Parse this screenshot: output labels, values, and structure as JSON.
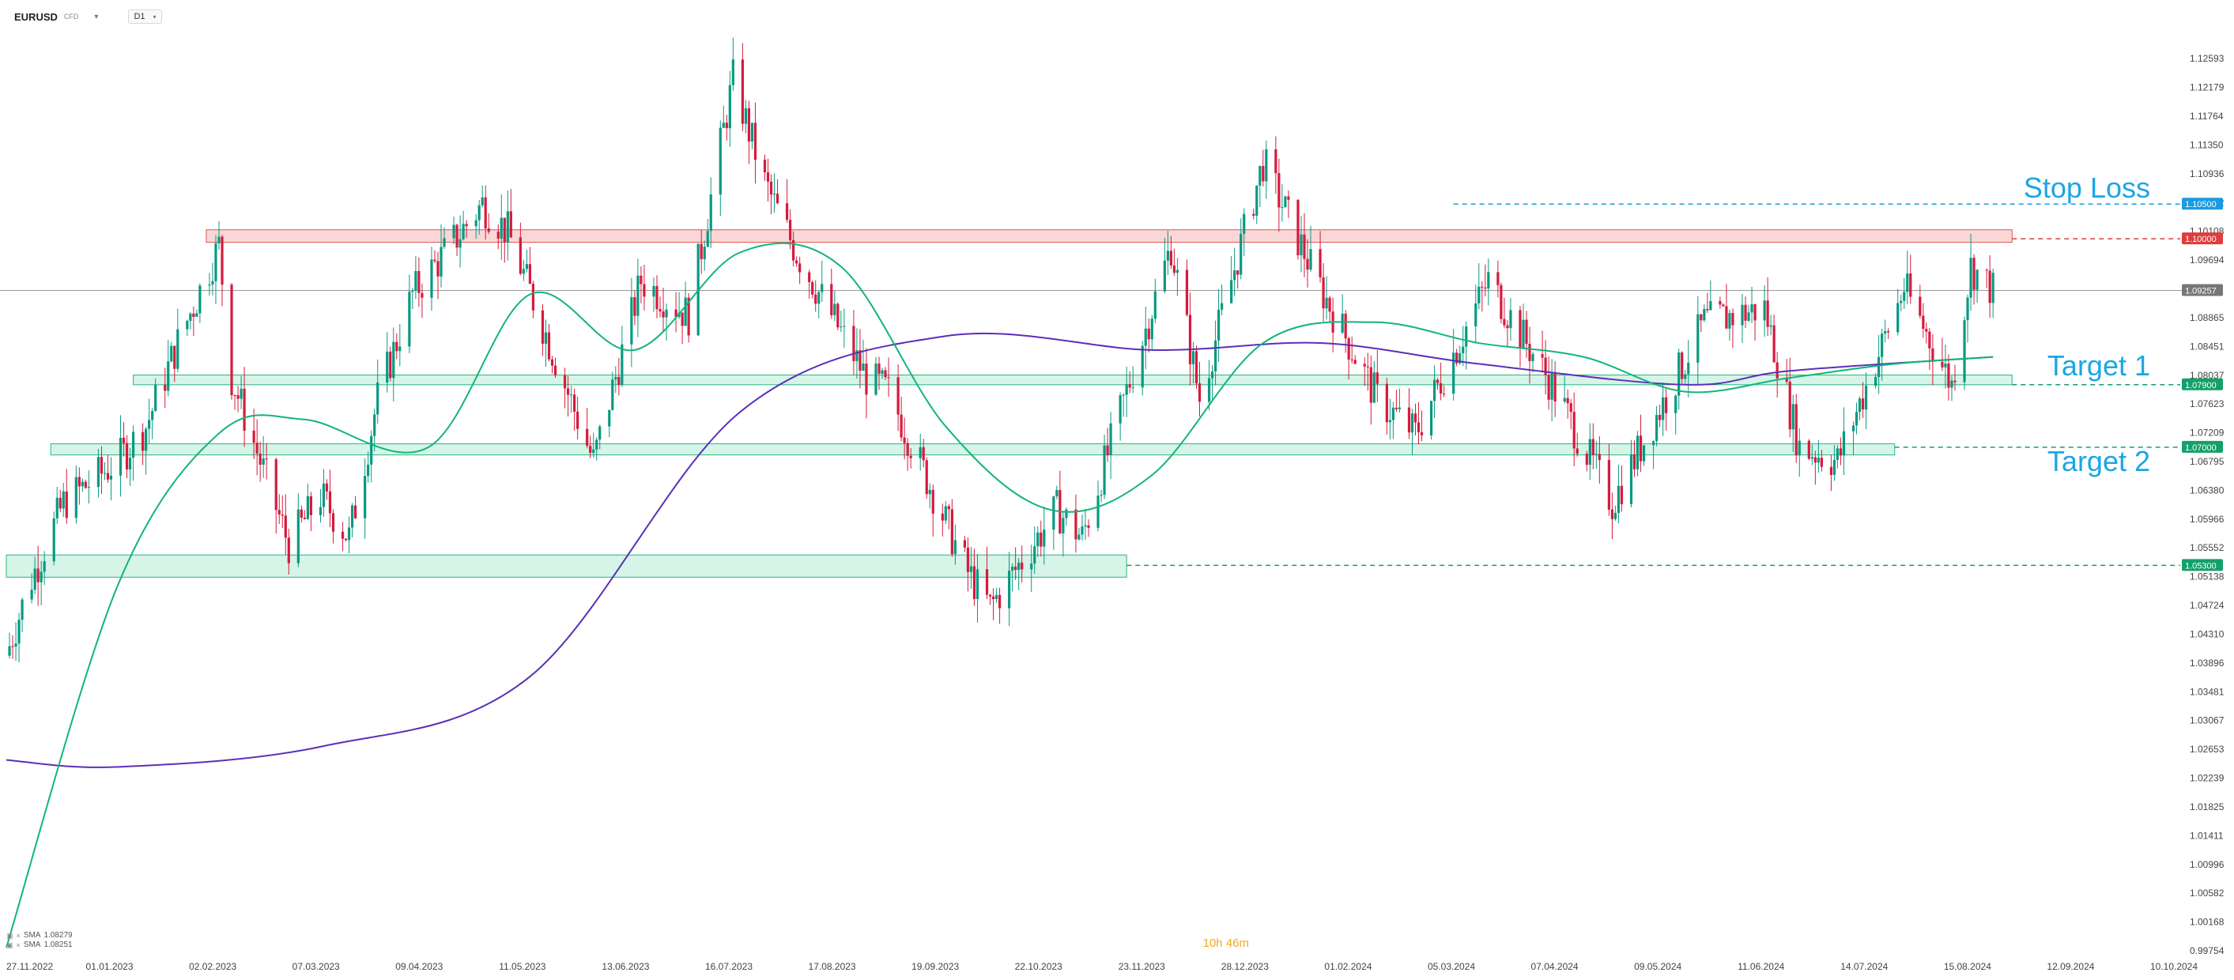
{
  "header": {
    "symbol": "EURUSD",
    "symbol_sub": "CFD",
    "timeframe": "D1"
  },
  "legend": [
    {
      "label": "SMA",
      "value": "1.08279"
    },
    {
      "label": "SMA",
      "value": "1.08251"
    }
  ],
  "countdown": "10h 46m",
  "colors": {
    "bull": "#089981",
    "bear": "#d61a3c",
    "sma_fast": "#11b57a",
    "sma_slow": "#5b2fb8",
    "resistance_fill": "#f7c9c9",
    "resistance_stroke": "#e05555",
    "support_fill": "#c8f0df",
    "support_stroke": "#2bb77f",
    "stop_line": "#1a9be0",
    "annotation_text": "#1ba6e5"
  },
  "chart_data": {
    "type": "candlestick",
    "instrument": "EURUSD",
    "timeframe": "D1",
    "ylim": [
      0.99754,
      1.128
    ],
    "y_ticks": [
      "1.12593",
      "1.12179",
      "1.11764",
      "1.11350",
      "1.10936",
      "1.10522",
      "1.10108",
      "1.09694",
      "1.09257",
      "1.08865",
      "1.08451",
      "1.08037",
      "1.07623",
      "1.07209",
      "1.06795",
      "1.06380",
      "1.05966",
      "1.05552",
      "1.05138",
      "1.04724",
      "1.04310",
      "1.03896",
      "1.03481",
      "1.03067",
      "1.02653",
      "1.02239",
      "1.01825",
      "1.01411",
      "1.00996",
      "1.00582",
      "1.00168",
      "0.99754"
    ],
    "x_tick_labels": [
      "27.11.2022",
      "01.01.2023",
      "02.02.2023",
      "07.03.2023",
      "09.04.2023",
      "11.05.2023",
      "13.06.2023",
      "16.07.2023",
      "17.08.2023",
      "19.09.2023",
      "22.10.2023",
      "23.11.2023",
      "28.12.2023",
      "01.02.2024",
      "05.03.2024",
      "07.04.2024",
      "09.05.2024",
      "11.06.2024",
      "14.07.2024",
      "15.08.2024",
      "12.09.2024",
      "10.10.2024"
    ],
    "current_price": "1.09257",
    "price_anchors": [
      {
        "date": "2022-11-27",
        "price": 1.04
      },
      {
        "date": "2022-12-04",
        "price": 1.05
      },
      {
        "date": "2022-12-15",
        "price": 1.062
      },
      {
        "date": "2023-01-01",
        "price": 1.068
      },
      {
        "date": "2023-01-10",
        "price": 1.073
      },
      {
        "date": "2023-01-20",
        "price": 1.085
      },
      {
        "date": "2023-02-02",
        "price": 1.099
      },
      {
        "date": "2023-02-06",
        "price": 1.08
      },
      {
        "date": "2023-02-24",
        "price": 1.056
      },
      {
        "date": "2023-03-06",
        "price": 1.063
      },
      {
        "date": "2023-03-15",
        "price": 1.057
      },
      {
        "date": "2023-03-24",
        "price": 1.077
      },
      {
        "date": "2023-04-04",
        "price": 1.092
      },
      {
        "date": "2023-04-26",
        "price": 1.105
      },
      {
        "date": "2023-05-04",
        "price": 1.101
      },
      {
        "date": "2023-05-31",
        "price": 1.068
      },
      {
        "date": "2023-06-15",
        "price": 1.094
      },
      {
        "date": "2023-06-30",
        "price": 1.089
      },
      {
        "date": "2023-07-14",
        "price": 1.123
      },
      {
        "date": "2023-07-24",
        "price": 1.108
      },
      {
        "date": "2023-08-03",
        "price": 1.098
      },
      {
        "date": "2023-08-25",
        "price": 1.08
      },
      {
        "date": "2023-09-01",
        "price": 1.078
      },
      {
        "date": "2023-09-26",
        "price": 1.052
      },
      {
        "date": "2023-10-03",
        "price": 1.047
      },
      {
        "date": "2023-10-24",
        "price": 1.061
      },
      {
        "date": "2023-11-01",
        "price": 1.057
      },
      {
        "date": "2023-11-29",
        "price": 1.099
      },
      {
        "date": "2023-12-08",
        "price": 1.077
      },
      {
        "date": "2023-12-28",
        "price": 1.111
      },
      {
        "date": "2024-01-15",
        "price": 1.093
      },
      {
        "date": "2024-02-02",
        "price": 1.077
      },
      {
        "date": "2024-02-14",
        "price": 1.072
      },
      {
        "date": "2024-03-08",
        "price": 1.094
      },
      {
        "date": "2024-03-28",
        "price": 1.079
      },
      {
        "date": "2024-04-16",
        "price": 1.062
      },
      {
        "date": "2024-05-15",
        "price": 1.088
      },
      {
        "date": "2024-06-03",
        "price": 1.09
      },
      {
        "date": "2024-06-14",
        "price": 1.07
      },
      {
        "date": "2024-06-26",
        "price": 1.068
      },
      {
        "date": "2024-07-17",
        "price": 1.093
      },
      {
        "date": "2024-08-01",
        "price": 1.079
      },
      {
        "date": "2024-08-07",
        "price": 1.096
      },
      {
        "date": "2024-08-14",
        "price": 1.09257
      }
    ],
    "sma_fast": {
      "value": "1.08279",
      "points": [
        {
          "date": "2022-11-27",
          "price": 0.998
        },
        {
          "date": "2023-01-01",
          "price": 1.05
        },
        {
          "date": "2023-02-02",
          "price": 1.072
        },
        {
          "date": "2023-03-01",
          "price": 1.074
        },
        {
          "date": "2023-04-09",
          "price": 1.07
        },
        {
          "date": "2023-05-11",
          "price": 1.092
        },
        {
          "date": "2023-06-13",
          "price": 1.084
        },
        {
          "date": "2023-07-16",
          "price": 1.098
        },
        {
          "date": "2023-08-17",
          "price": 1.096
        },
        {
          "date": "2023-09-19",
          "price": 1.073
        },
        {
          "date": "2023-10-22",
          "price": 1.061
        },
        {
          "date": "2023-11-23",
          "price": 1.066
        },
        {
          "date": "2023-12-28",
          "price": 1.085
        },
        {
          "date": "2024-02-01",
          "price": 1.088
        },
        {
          "date": "2024-03-05",
          "price": 1.085
        },
        {
          "date": "2024-04-07",
          "price": 1.083
        },
        {
          "date": "2024-05-09",
          "price": 1.078
        },
        {
          "date": "2024-06-11",
          "price": 1.08
        },
        {
          "date": "2024-07-14",
          "price": 1.082
        },
        {
          "date": "2024-08-14",
          "price": 1.083
        }
      ]
    },
    "sma_slow": {
      "value": "1.08251",
      "points": [
        {
          "date": "2022-11-27",
          "price": 1.025
        },
        {
          "date": "2023-01-01",
          "price": 1.024
        },
        {
          "date": "2023-03-07",
          "price": 1.027
        },
        {
          "date": "2023-05-11",
          "price": 1.037
        },
        {
          "date": "2023-07-16",
          "price": 1.075
        },
        {
          "date": "2023-09-19",
          "price": 1.086
        },
        {
          "date": "2023-11-23",
          "price": 1.084
        },
        {
          "date": "2024-01-15",
          "price": 1.085
        },
        {
          "date": "2024-03-05",
          "price": 1.082
        },
        {
          "date": "2024-05-09",
          "price": 1.079
        },
        {
          "date": "2024-06-11",
          "price": 1.081
        },
        {
          "date": "2024-08-14",
          "price": 1.083
        }
      ]
    },
    "zones": [
      {
        "kind": "resistance",
        "price_low": 1.0995,
        "price_high": 1.1013,
        "start": "2023-01-29",
        "end": "2024-08-20"
      },
      {
        "kind": "support",
        "price_low": 1.079,
        "price_high": 1.0804,
        "start": "2023-01-06",
        "end": "2024-08-20"
      },
      {
        "kind": "support",
        "price_low": 1.0689,
        "price_high": 1.0705,
        "start": "2022-12-11",
        "end": "2024-07-14"
      },
      {
        "kind": "support",
        "price_low": 1.0513,
        "price_high": 1.0545,
        "start": "2022-11-27",
        "end": "2023-11-15"
      }
    ],
    "levels": [
      {
        "price": 1.105,
        "label": "1.10500",
        "annotation": "Stop Loss",
        "color": "#1a9be0",
        "start": "2024-02-26"
      },
      {
        "price": 1.1,
        "label": "1.10000",
        "annotation": "",
        "color": "#e03c3c",
        "start": "2024-08-20"
      },
      {
        "price": 1.079,
        "label": "1.07900",
        "annotation": "Target 1",
        "color": "#14a06a",
        "start": "2024-08-20"
      },
      {
        "price": 1.07,
        "label": "1.07000",
        "annotation": "Target 2",
        "color": "#14a06a",
        "start": "2024-07-14"
      },
      {
        "price": 1.053,
        "label": "1.05300",
        "annotation": "",
        "color": "#14a06a",
        "start": "2023-11-15"
      }
    ]
  }
}
